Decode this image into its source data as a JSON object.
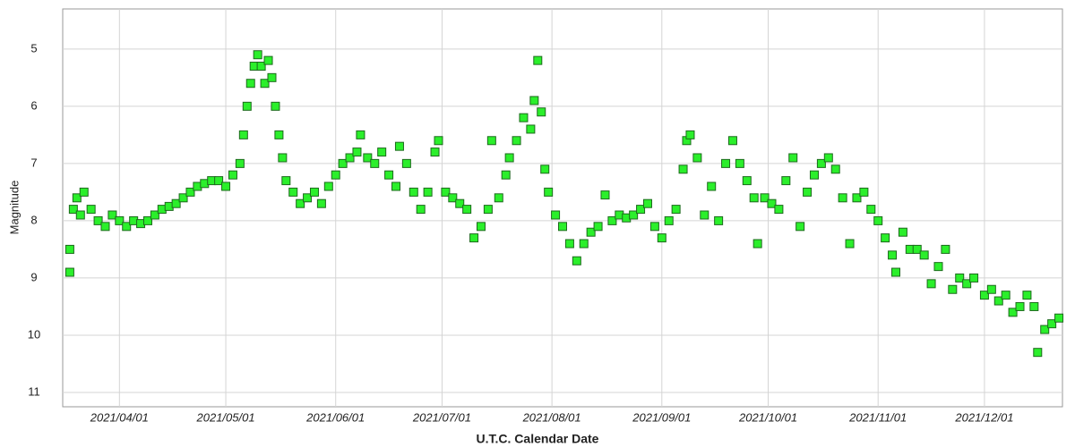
{
  "chart_data": {
    "type": "scatter",
    "xlabel": "U.T.C. Calendar Date",
    "ylabel": "Magnitude",
    "xlim": [
      "2021/03/16",
      "2021/12/23"
    ],
    "xticks": [
      "2021/04/01",
      "2021/05/01",
      "2021/06/01",
      "2021/07/01",
      "2021/08/01",
      "2021/09/01",
      "2021/10/01",
      "2021/11/01",
      "2021/12/01"
    ],
    "ylim": [
      4.3,
      11.25
    ],
    "y_inverted": true,
    "yticks": [
      5,
      6,
      7,
      8,
      9,
      10,
      11
    ],
    "grid": true,
    "series": [
      {
        "color": "#2bef2b",
        "x": [
          "2021/03/18",
          "2021/03/18",
          "2021/03/19",
          "2021/03/20",
          "2021/03/21",
          "2021/03/22",
          "2021/03/24",
          "2021/03/26",
          "2021/03/28",
          "2021/03/30",
          "2021/04/01",
          "2021/04/03",
          "2021/04/05",
          "2021/04/07",
          "2021/04/09",
          "2021/04/11",
          "2021/04/13",
          "2021/04/15",
          "2021/04/17",
          "2021/04/19",
          "2021/04/21",
          "2021/04/23",
          "2021/04/25",
          "2021/04/27",
          "2021/04/29",
          "2021/05/01",
          "2021/05/03",
          "2021/05/05",
          "2021/05/06",
          "2021/05/07",
          "2021/05/08",
          "2021/05/09",
          "2021/05/10",
          "2021/05/11",
          "2021/05/12",
          "2021/05/13",
          "2021/05/14",
          "2021/05/15",
          "2021/05/16",
          "2021/05/17",
          "2021/05/18",
          "2021/05/20",
          "2021/05/22",
          "2021/05/24",
          "2021/05/26",
          "2021/05/28",
          "2021/05/30",
          "2021/06/01",
          "2021/06/03",
          "2021/06/05",
          "2021/06/07",
          "2021/06/08",
          "2021/06/10",
          "2021/06/12",
          "2021/06/14",
          "2021/06/16",
          "2021/06/18",
          "2021/06/19",
          "2021/06/21",
          "2021/06/23",
          "2021/06/25",
          "2021/06/27",
          "2021/06/29",
          "2021/06/30",
          "2021/07/02",
          "2021/07/04",
          "2021/07/06",
          "2021/07/08",
          "2021/07/10",
          "2021/07/12",
          "2021/07/14",
          "2021/07/15",
          "2021/07/17",
          "2021/07/19",
          "2021/07/20",
          "2021/07/22",
          "2021/07/24",
          "2021/07/26",
          "2021/07/27",
          "2021/07/28",
          "2021/07/29",
          "2021/07/30",
          "2021/07/31",
          "2021/08/02",
          "2021/08/04",
          "2021/08/06",
          "2021/08/08",
          "2021/08/10",
          "2021/08/12",
          "2021/08/14",
          "2021/08/16",
          "2021/08/18",
          "2021/08/20",
          "2021/08/22",
          "2021/08/24",
          "2021/08/26",
          "2021/08/28",
          "2021/08/30",
          "2021/09/01",
          "2021/09/03",
          "2021/09/05",
          "2021/09/07",
          "2021/09/08",
          "2021/09/09",
          "2021/09/11",
          "2021/09/13",
          "2021/09/15",
          "2021/09/17",
          "2021/09/19",
          "2021/09/21",
          "2021/09/23",
          "2021/09/25",
          "2021/09/27",
          "2021/09/28",
          "2021/09/30",
          "2021/10/02",
          "2021/10/04",
          "2021/10/06",
          "2021/10/08",
          "2021/10/10",
          "2021/10/12",
          "2021/10/14",
          "2021/10/16",
          "2021/10/18",
          "2021/10/20",
          "2021/10/22",
          "2021/10/24",
          "2021/10/26",
          "2021/10/28",
          "2021/10/30",
          "2021/11/01",
          "2021/11/03",
          "2021/11/05",
          "2021/11/06",
          "2021/11/08",
          "2021/11/10",
          "2021/11/12",
          "2021/11/14",
          "2021/11/16",
          "2021/11/18",
          "2021/11/20",
          "2021/11/22",
          "2021/11/24",
          "2021/11/26",
          "2021/11/28",
          "2021/12/01",
          "2021/12/03",
          "2021/12/05",
          "2021/12/07",
          "2021/12/09",
          "2021/12/11",
          "2021/12/13",
          "2021/12/15",
          "2021/12/16",
          "2021/12/18",
          "2021/12/20",
          "2021/12/22"
        ],
        "values": [
          8.9,
          8.5,
          7.8,
          7.6,
          7.9,
          7.5,
          7.8,
          8.0,
          8.1,
          7.9,
          8.0,
          8.1,
          8.0,
          8.05,
          8.0,
          7.9,
          7.8,
          7.75,
          7.7,
          7.6,
          7.5,
          7.4,
          7.35,
          7.3,
          7.3,
          7.4,
          7.2,
          7.0,
          6.5,
          6.0,
          5.6,
          5.3,
          5.1,
          5.3,
          5.6,
          5.2,
          5.5,
          6.0,
          6.5,
          6.9,
          7.3,
          7.5,
          7.7,
          7.6,
          7.5,
          7.7,
          7.4,
          7.2,
          7.0,
          6.9,
          6.8,
          6.5,
          6.9,
          7.0,
          6.8,
          7.2,
          7.4,
          6.7,
          7.0,
          7.5,
          7.8,
          7.5,
          6.8,
          6.6,
          7.5,
          7.6,
          7.7,
          7.8,
          8.3,
          8.1,
          7.8,
          6.6,
          7.6,
          7.2,
          6.9,
          6.6,
          6.2,
          6.4,
          5.9,
          5.2,
          6.1,
          7.1,
          7.5,
          7.9,
          8.1,
          8.4,
          8.7,
          8.4,
          8.2,
          8.1,
          7.55,
          8.0,
          7.9,
          7.95,
          7.9,
          7.8,
          7.7,
          8.1,
          8.3,
          8.0,
          7.8,
          7.1,
          6.6,
          6.5,
          6.9,
          7.9,
          7.4,
          8.0,
          7.0,
          6.6,
          7.0,
          7.3,
          7.6,
          8.4,
          7.6,
          7.7,
          7.8,
          7.3,
          6.9,
          8.1,
          7.5,
          7.2,
          7.0,
          6.9,
          7.1,
          7.6,
          8.4,
          7.6,
          7.5,
          7.8,
          8.0,
          8.3,
          8.6,
          8.9,
          8.2,
          8.5,
          8.5,
          8.6,
          9.1,
          8.8,
          8.5,
          9.2,
          9.0,
          9.1,
          9.0,
          9.3,
          9.2,
          9.4,
          9.3,
          9.6,
          9.5,
          9.3,
          9.5,
          10.3,
          9.9,
          9.8,
          9.7
        ]
      }
    ]
  }
}
